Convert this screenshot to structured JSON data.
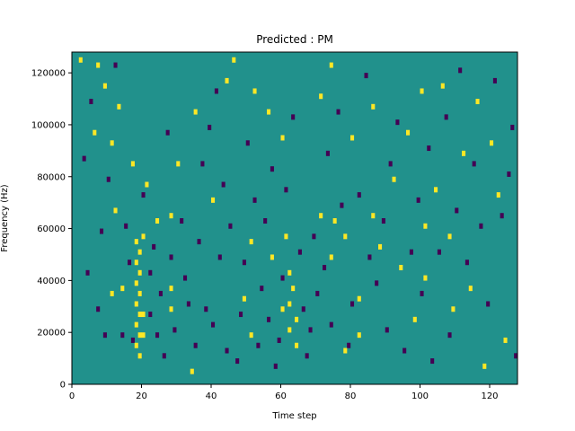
{
  "chart_data": {
    "type": "heatmap",
    "title": "Predicted : PM",
    "xlabel": "Time step",
    "ylabel": "Frequency (Hz)",
    "xlim": [
      0,
      128
    ],
    "ylim": [
      0,
      128000
    ],
    "x_ticks": [
      0,
      20,
      40,
      60,
      80,
      100,
      120
    ],
    "x_tick_labels": [
      "0",
      "20",
      "40",
      "60",
      "80",
      "100",
      "120"
    ],
    "y_ticks": [
      0,
      20000,
      40000,
      60000,
      80000,
      100000,
      120000
    ],
    "y_tick_labels": [
      "0",
      "20000",
      "40000",
      "60000",
      "80000",
      "100000",
      "120000"
    ],
    "cell_height_hz": 2000,
    "colors": {
      "background": "#21918c",
      "high": "#fde725",
      "low": "#440154"
    },
    "high_cells": [
      [
        2,
        124000
      ],
      [
        6,
        96000
      ],
      [
        7,
        122000
      ],
      [
        9,
        114000
      ],
      [
        11,
        34000
      ],
      [
        11,
        92000
      ],
      [
        12,
        66000
      ],
      [
        13,
        106000
      ],
      [
        14,
        36000
      ],
      [
        17,
        84000
      ],
      [
        18,
        54000
      ],
      [
        18,
        46000
      ],
      [
        18,
        38000
      ],
      [
        18,
        30000
      ],
      [
        18,
        22000
      ],
      [
        18,
        14000
      ],
      [
        19,
        50000
      ],
      [
        19,
        42000
      ],
      [
        19,
        34000
      ],
      [
        19,
        26000
      ],
      [
        19,
        18000
      ],
      [
        19,
        10000
      ],
      [
        20,
        56000
      ],
      [
        20,
        26000
      ],
      [
        20,
        18000
      ],
      [
        21,
        76000
      ],
      [
        24,
        62000
      ],
      [
        28,
        64000
      ],
      [
        28,
        36000
      ],
      [
        28,
        28000
      ],
      [
        30,
        84000
      ],
      [
        34,
        4000
      ],
      [
        35,
        104000
      ],
      [
        40,
        70000
      ],
      [
        44,
        116000
      ],
      [
        46,
        124000
      ],
      [
        49,
        32000
      ],
      [
        51,
        54000
      ],
      [
        51,
        18000
      ],
      [
        52,
        112000
      ],
      [
        56,
        104000
      ],
      [
        57,
        48000
      ],
      [
        60,
        94000
      ],
      [
        60,
        28000
      ],
      [
        61,
        56000
      ],
      [
        62,
        42000
      ],
      [
        62,
        30000
      ],
      [
        62,
        20000
      ],
      [
        63,
        36000
      ],
      [
        64,
        24000
      ],
      [
        64,
        14000
      ],
      [
        71,
        110000
      ],
      [
        71,
        64000
      ],
      [
        74,
        122000
      ],
      [
        74,
        48000
      ],
      [
        75,
        62000
      ],
      [
        78,
        56000
      ],
      [
        78,
        12000
      ],
      [
        80,
        94000
      ],
      [
        82,
        32000
      ],
      [
        82,
        18000
      ],
      [
        86,
        106000
      ],
      [
        86,
        64000
      ],
      [
        88,
        52000
      ],
      [
        92,
        78000
      ],
      [
        94,
        44000
      ],
      [
        96,
        96000
      ],
      [
        98,
        24000
      ],
      [
        100,
        112000
      ],
      [
        101,
        60000
      ],
      [
        101,
        40000
      ],
      [
        104,
        74000
      ],
      [
        106,
        114000
      ],
      [
        108,
        56000
      ],
      [
        109,
        28000
      ],
      [
        112,
        88000
      ],
      [
        114,
        36000
      ],
      [
        116,
        108000
      ],
      [
        118,
        6000
      ],
      [
        120,
        92000
      ],
      [
        122,
        72000
      ],
      [
        124,
        16000
      ]
    ],
    "low_cells": [
      [
        3,
        86000
      ],
      [
        4,
        42000
      ],
      [
        5,
        108000
      ],
      [
        7,
        28000
      ],
      [
        8,
        58000
      ],
      [
        9,
        18000
      ],
      [
        10,
        78000
      ],
      [
        12,
        122000
      ],
      [
        14,
        18000
      ],
      [
        15,
        60000
      ],
      [
        16,
        46000
      ],
      [
        17,
        16000
      ],
      [
        20,
        72000
      ],
      [
        22,
        26000
      ],
      [
        22,
        42000
      ],
      [
        23,
        52000
      ],
      [
        24,
        18000
      ],
      [
        25,
        34000
      ],
      [
        26,
        10000
      ],
      [
        27,
        96000
      ],
      [
        28,
        48000
      ],
      [
        29,
        20000
      ],
      [
        31,
        62000
      ],
      [
        32,
        40000
      ],
      [
        33,
        30000
      ],
      [
        35,
        14000
      ],
      [
        36,
        54000
      ],
      [
        37,
        84000
      ],
      [
        38,
        28000
      ],
      [
        39,
        98000
      ],
      [
        40,
        22000
      ],
      [
        41,
        112000
      ],
      [
        42,
        48000
      ],
      [
        43,
        76000
      ],
      [
        44,
        12000
      ],
      [
        45,
        60000
      ],
      [
        47,
        8000
      ],
      [
        48,
        26000
      ],
      [
        49,
        46000
      ],
      [
        50,
        92000
      ],
      [
        52,
        70000
      ],
      [
        53,
        14000
      ],
      [
        54,
        36000
      ],
      [
        55,
        62000
      ],
      [
        56,
        24000
      ],
      [
        57,
        82000
      ],
      [
        58,
        6000
      ],
      [
        59,
        16000
      ],
      [
        60,
        40000
      ],
      [
        61,
        74000
      ],
      [
        63,
        102000
      ],
      [
        65,
        50000
      ],
      [
        66,
        28000
      ],
      [
        67,
        10000
      ],
      [
        68,
        20000
      ],
      [
        69,
        56000
      ],
      [
        70,
        34000
      ],
      [
        72,
        44000
      ],
      [
        73,
        88000
      ],
      [
        74,
        22000
      ],
      [
        76,
        104000
      ],
      [
        77,
        68000
      ],
      [
        79,
        14000
      ],
      [
        80,
        30000
      ],
      [
        82,
        72000
      ],
      [
        84,
        118000
      ],
      [
        85,
        48000
      ],
      [
        87,
        38000
      ],
      [
        89,
        62000
      ],
      [
        90,
        20000
      ],
      [
        91,
        84000
      ],
      [
        93,
        100000
      ],
      [
        95,
        12000
      ],
      [
        97,
        50000
      ],
      [
        99,
        70000
      ],
      [
        100,
        34000
      ],
      [
        102,
        90000
      ],
      [
        103,
        8000
      ],
      [
        105,
        50000
      ],
      [
        107,
        102000
      ],
      [
        108,
        18000
      ],
      [
        110,
        66000
      ],
      [
        111,
        120000
      ],
      [
        113,
        46000
      ],
      [
        115,
        84000
      ],
      [
        117,
        60000
      ],
      [
        119,
        30000
      ],
      [
        121,
        116000
      ],
      [
        123,
        64000
      ],
      [
        125,
        80000
      ],
      [
        126,
        98000
      ],
      [
        127,
        10000
      ]
    ]
  }
}
